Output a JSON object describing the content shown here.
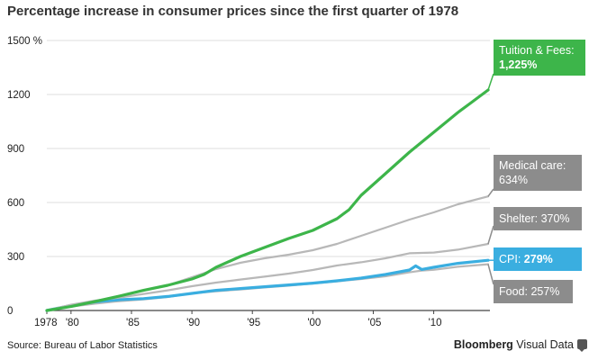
{
  "chart_data": {
    "type": "line",
    "title": "Percentage increase in consumer prices since the first quarter of 1978",
    "ylim": [
      0,
      1500
    ],
    "xlim": [
      1978,
      2014.5
    ],
    "y_ticks": [
      {
        "value": 0,
        "label": "0"
      },
      {
        "value": 300,
        "label": "300"
      },
      {
        "value": 600,
        "label": "600"
      },
      {
        "value": 900,
        "label": "900"
      },
      {
        "value": 1200,
        "label": "1200"
      },
      {
        "value": 1500,
        "label": "1500 %"
      }
    ],
    "x_ticks": [
      {
        "value": 1978,
        "label": "1978"
      },
      {
        "value": 1980,
        "label": "'80"
      },
      {
        "value": 1985,
        "label": "'85"
      },
      {
        "value": 1990,
        "label": "'90"
      },
      {
        "value": 1995,
        "label": "'95"
      },
      {
        "value": 2000,
        "label": "'00"
      },
      {
        "value": 2005,
        "label": "'05"
      },
      {
        "value": 2010,
        "label": "'10"
      }
    ],
    "grid": "horizontal",
    "series": [
      {
        "name": "Food",
        "color": "#b8b8b8",
        "label_name": "Food:",
        "label_value": "257%",
        "label_color": "#8c8c8c",
        "x": [
          1978,
          1980,
          1982,
          1984,
          1986,
          1988,
          1990,
          1992,
          1994,
          1996,
          1998,
          2000,
          2002,
          2004,
          2006,
          2008,
          2009,
          2010,
          2012,
          2014.5
        ],
        "values": [
          0,
          22,
          38,
          52,
          62,
          75,
          95,
          107,
          117,
          128,
          138,
          150,
          162,
          175,
          190,
          212,
          222,
          226,
          243,
          257
        ]
      },
      {
        "name": "CPI",
        "color": "#3aaee0",
        "label_name": "CPI:",
        "label_value": "279%",
        "label_color": "#3aaee0",
        "x": [
          1978,
          1980,
          1982,
          1984,
          1986,
          1988,
          1990,
          1992,
          1994,
          1996,
          1998,
          2000,
          2002,
          2004,
          2006,
          2008,
          2008.5,
          2009,
          2010,
          2012,
          2014.5
        ],
        "values": [
          0,
          28,
          48,
          60,
          66,
          78,
          95,
          112,
          122,
          132,
          142,
          152,
          165,
          180,
          200,
          225,
          248,
          228,
          240,
          262,
          279
        ]
      },
      {
        "name": "Shelter",
        "color": "#b8b8b8",
        "label_name": "Shelter:",
        "label_value": "370%",
        "label_color": "#8c8c8c",
        "x": [
          1978,
          1980,
          1982,
          1984,
          1986,
          1988,
          1990,
          1992,
          1994,
          1996,
          1998,
          2000,
          2002,
          2004,
          2006,
          2008,
          2010,
          2012,
          2014.5
        ],
        "values": [
          0,
          32,
          55,
          72,
          92,
          112,
          135,
          155,
          172,
          188,
          205,
          225,
          250,
          268,
          290,
          318,
          322,
          338,
          370
        ]
      },
      {
        "name": "Medical care",
        "color": "#b8b8b8",
        "label_name": "Medical care:",
        "label_value": "634%",
        "label_color": "#8c8c8c",
        "x": [
          1978,
          1980,
          1982,
          1984,
          1986,
          1988,
          1990,
          1992,
          1994,
          1996,
          1998,
          2000,
          2002,
          2004,
          2006,
          2008,
          2010,
          2012,
          2014.5
        ],
        "values": [
          0,
          22,
          52,
          82,
          112,
          140,
          185,
          230,
          265,
          290,
          310,
          335,
          370,
          415,
          460,
          505,
          545,
          590,
          634
        ]
      },
      {
        "name": "Tuition & Fees",
        "color": "#3db54a",
        "label_name": "Tuition & Fees:",
        "label_value": "1,225%",
        "label_color": "#3db54a",
        "x": [
          1978,
          1980,
          1982,
          1984,
          1986,
          1988,
          1990,
          1991,
          1992,
          1994,
          1996,
          1998,
          2000,
          2002,
          2003,
          2004,
          2006,
          2008,
          2010,
          2012,
          2013,
          2014.5
        ],
        "values": [
          0,
          22,
          50,
          80,
          112,
          140,
          175,
          200,
          240,
          300,
          350,
          400,
          445,
          510,
          560,
          640,
          760,
          880,
          990,
          1100,
          1150,
          1225
        ]
      }
    ],
    "source": "Source: Bureau of Labor Statistics",
    "brand_bold": "Bloomberg",
    "brand_rest": " Visual Data"
  }
}
